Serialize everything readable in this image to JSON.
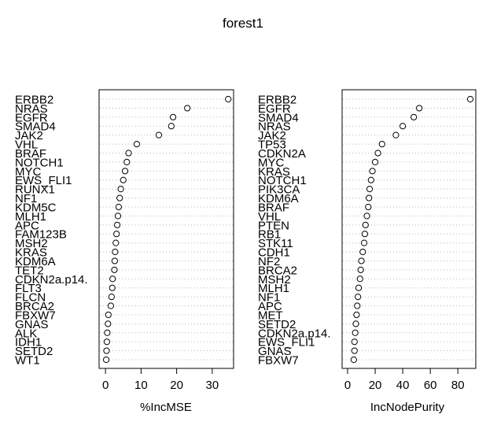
{
  "title": "forest1",
  "chart_data": [
    {
      "type": "scatter",
      "subtype": "dotchart",
      "xlabel": "%IncMSE",
      "xlim": [
        -1.8,
        36
      ],
      "xticks": [
        0,
        10,
        20,
        30
      ],
      "categories": [
        "ERBB2",
        "NRAS",
        "EGFR",
        "SMAD4",
        "JAK2",
        "VHL",
        "BRAF",
        "NOTCH1",
        "MYC",
        "EWS_FLI1",
        "RUNX1",
        "NF1",
        "KDM5C",
        "MLH1",
        "APC",
        "FAM123B",
        "MSH2",
        "KRAS",
        "KDM6A",
        "TET2",
        "CDKN2a.p14.",
        "FLT3",
        "FLCN",
        "BRCA2",
        "FBXW7",
        "GNAS",
        "ALK",
        "IDH1",
        "SETD2",
        "WT1"
      ],
      "values": [
        34.5,
        23.0,
        19.0,
        18.5,
        15.0,
        8.8,
        6.5,
        6.0,
        5.5,
        5.0,
        4.3,
        4.0,
        3.7,
        3.5,
        3.3,
        3.1,
        2.9,
        2.7,
        2.6,
        2.5,
        2.0,
        1.9,
        1.7,
        1.5,
        0.8,
        0.7,
        0.5,
        0.4,
        0.3,
        0.2
      ],
      "grid": true
    },
    {
      "type": "scatter",
      "subtype": "dotchart",
      "xlabel": "IncNodePurity",
      "xlim": [
        -4,
        93
      ],
      "xticks": [
        0,
        20,
        40,
        60,
        80
      ],
      "categories": [
        "ERBB2",
        "EGFR",
        "SMAD4",
        "NRAS",
        "JAK2",
        "TP53",
        "CDKN2A",
        "MYC",
        "KRAS",
        "NOTCH1",
        "PIK3CA",
        "KDM6A",
        "BRAF",
        "VHL",
        "PTEN",
        "RB1",
        "STK11",
        "CDH1",
        "NF2",
        "BRCA2",
        "MSH2",
        "MLH1",
        "NF1",
        "APC",
        "MET",
        "SETD2",
        "CDKN2a.p14.",
        "EWS_FLI1",
        "GNAS",
        "FBXW7"
      ],
      "values": [
        89,
        52,
        48,
        40,
        35,
        25,
        22,
        20,
        18,
        17,
        16,
        15.5,
        15,
        14,
        13,
        12.5,
        12,
        11,
        10,
        9.5,
        9,
        8,
        7.5,
        7,
        6.5,
        6,
        5.5,
        5,
        5,
        4.5
      ],
      "grid": true
    }
  ]
}
